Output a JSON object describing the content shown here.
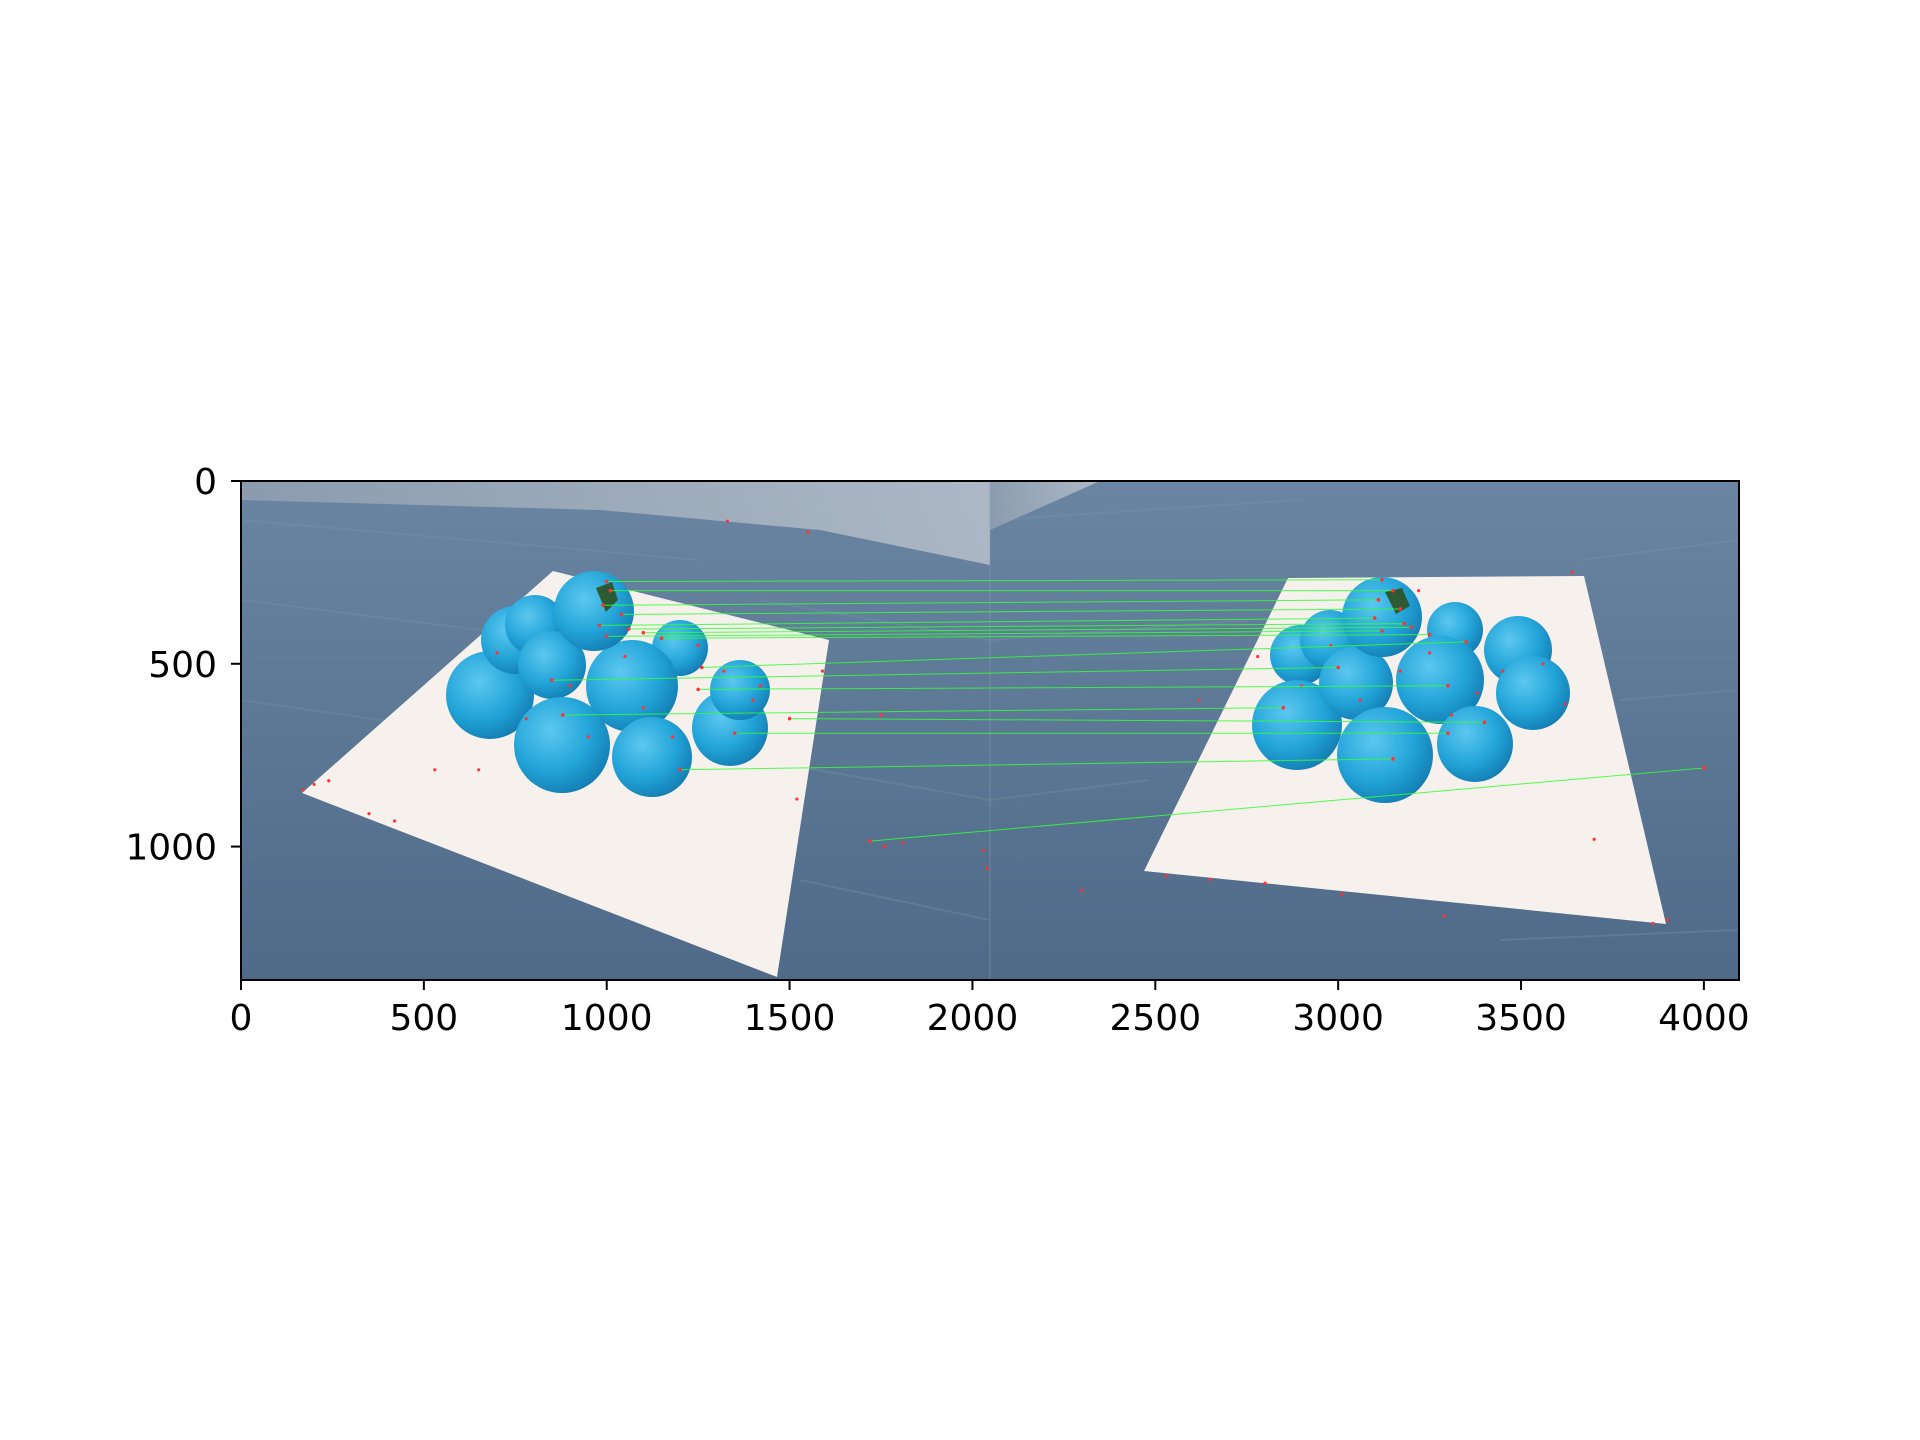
{
  "chart_data": {
    "type": "image",
    "title": "",
    "xlabel": "",
    "ylabel": "",
    "xlim": [
      0,
      4096
    ],
    "ylim": [
      1365,
      0
    ],
    "x_ticks": [
      0,
      500,
      1000,
      1500,
      2000,
      2500,
      3000,
      3500,
      4000
    ],
    "y_ticks": [
      0,
      500,
      1000
    ],
    "x_tick_labels": [
      "0",
      "500",
      "1000",
      "1500",
      "2000",
      "2500",
      "3000",
      "3500",
      "4000"
    ],
    "y_tick_labels": [
      "0",
      "500",
      "1000"
    ],
    "grid": false,
    "legend": "none",
    "panel_split_x": 2048,
    "colors": {
      "match_line": "#33ff33",
      "keypoint": "#ff3333",
      "fruit": "#26a9dc",
      "table": "#5b7795",
      "paper": "#f6f1ec"
    },
    "matches": [
      {
        "x1": 1000,
        "y1": 275,
        "x2": 3120,
        "y2": 270
      },
      {
        "x1": 1010,
        "y1": 300,
        "x2": 3150,
        "y2": 300
      },
      {
        "x1": 990,
        "y1": 340,
        "x2": 3110,
        "y2": 325
      },
      {
        "x1": 1040,
        "y1": 365,
        "x2": 3170,
        "y2": 350
      },
      {
        "x1": 980,
        "y1": 395,
        "x2": 3100,
        "y2": 375
      },
      {
        "x1": 1060,
        "y1": 405,
        "x2": 3180,
        "y2": 390
      },
      {
        "x1": 1100,
        "y1": 415,
        "x2": 3200,
        "y2": 400
      },
      {
        "x1": 1000,
        "y1": 425,
        "x2": 3120,
        "y2": 410
      },
      {
        "x1": 1150,
        "y1": 430,
        "x2": 3250,
        "y2": 420
      },
      {
        "x1": 1260,
        "y1": 510,
        "x2": 3350,
        "y2": 440
      },
      {
        "x1": 850,
        "y1": 545,
        "x2": 3000,
        "y2": 510
      },
      {
        "x1": 1250,
        "y1": 570,
        "x2": 3300,
        "y2": 560
      },
      {
        "x1": 880,
        "y1": 640,
        "x2": 2850,
        "y2": 620
      },
      {
        "x1": 1500,
        "y1": 650,
        "x2": 3400,
        "y2": 660
      },
      {
        "x1": 1350,
        "y1": 690,
        "x2": 3300,
        "y2": 690
      },
      {
        "x1": 1200,
        "y1": 790,
        "x2": 3150,
        "y2": 760
      },
      {
        "x1": 1720,
        "y1": 985,
        "x2": 4000,
        "y2": 785
      }
    ],
    "keypoints": [
      {
        "x": 170,
        "y": 845
      },
      {
        "x": 200,
        "y": 830
      },
      {
        "x": 240,
        "y": 820
      },
      {
        "x": 350,
        "y": 910
      },
      {
        "x": 420,
        "y": 930
      },
      {
        "x": 530,
        "y": 790
      },
      {
        "x": 650,
        "y": 790
      },
      {
        "x": 700,
        "y": 470
      },
      {
        "x": 780,
        "y": 650
      },
      {
        "x": 900,
        "y": 560
      },
      {
        "x": 950,
        "y": 700
      },
      {
        "x": 1050,
        "y": 480
      },
      {
        "x": 1100,
        "y": 620
      },
      {
        "x": 1180,
        "y": 700
      },
      {
        "x": 1250,
        "y": 450
      },
      {
        "x": 1320,
        "y": 520
      },
      {
        "x": 1400,
        "y": 600
      },
      {
        "x": 1420,
        "y": 560
      },
      {
        "x": 1590,
        "y": 520
      },
      {
        "x": 1520,
        "y": 870
      },
      {
        "x": 1750,
        "y": 640
      },
      {
        "x": 1760,
        "y": 1000
      },
      {
        "x": 1810,
        "y": 990
      },
      {
        "x": 2030,
        "y": 1010
      },
      {
        "x": 2040,
        "y": 1060
      },
      {
        "x": 1330,
        "y": 110
      },
      {
        "x": 1550,
        "y": 140
      },
      {
        "x": 2530,
        "y": 1080
      },
      {
        "x": 2650,
        "y": 1090
      },
      {
        "x": 2800,
        "y": 1100
      },
      {
        "x": 2780,
        "y": 480
      },
      {
        "x": 2900,
        "y": 560
      },
      {
        "x": 2980,
        "y": 450
      },
      {
        "x": 3060,
        "y": 600
      },
      {
        "x": 3170,
        "y": 520
      },
      {
        "x": 3250,
        "y": 470
      },
      {
        "x": 3310,
        "y": 640
      },
      {
        "x": 3380,
        "y": 580
      },
      {
        "x": 3450,
        "y": 520
      },
      {
        "x": 3560,
        "y": 500
      },
      {
        "x": 3620,
        "y": 610
      },
      {
        "x": 3640,
        "y": 250
      },
      {
        "x": 3700,
        "y": 980
      },
      {
        "x": 3860,
        "y": 1210
      },
      {
        "x": 3900,
        "y": 1200
      },
      {
        "x": 3290,
        "y": 1190
      },
      {
        "x": 3010,
        "y": 1130
      },
      {
        "x": 2620,
        "y": 600
      },
      {
        "x": 3220,
        "y": 300
      },
      {
        "x": 2300,
        "y": 1120
      }
    ]
  }
}
